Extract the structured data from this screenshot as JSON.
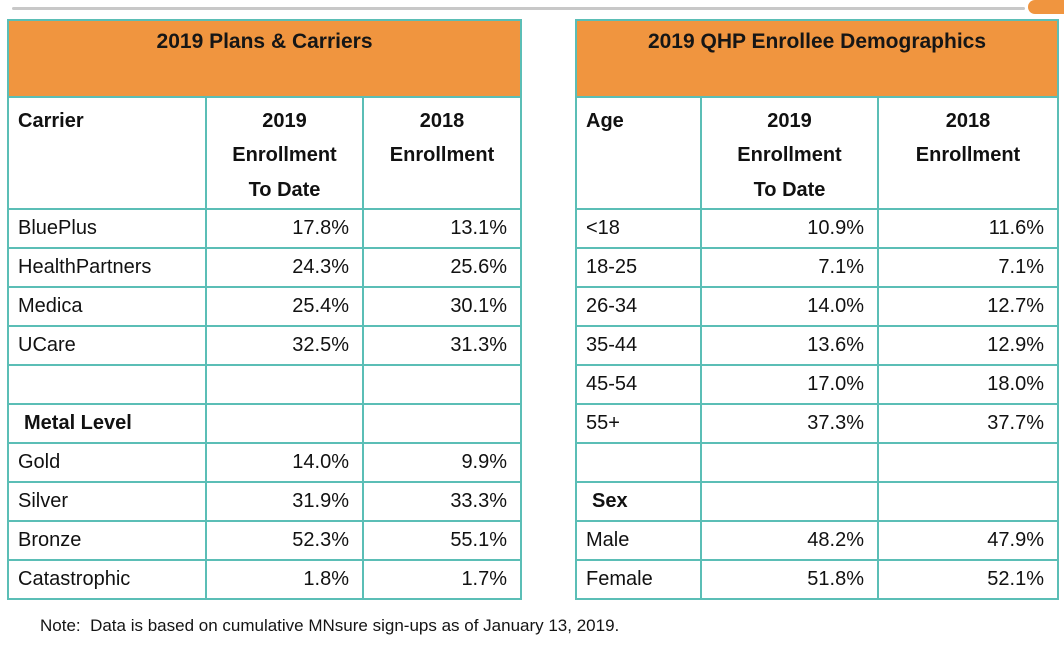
{
  "colors": {
    "header_bg": "#F0953F",
    "table_border": "#5BBEB6",
    "text": "#111111",
    "divider_line": "#C8C8C8",
    "corner_tab": "#F0953F"
  },
  "note": {
    "text": "Note:  Data is based on cumulative MNsure sign-ups as of January 13, 2019."
  },
  "chart_data": [
    {
      "type": "table",
      "title": "2019 Plans & Carriers",
      "columns": [
        "Carrier",
        "2019\nEnrollment\nTo Date",
        "2018\nEnrollment"
      ],
      "legend_position": "none",
      "grid": true,
      "rows": [
        {
          "label": "BluePlus",
          "enrollment_2019": "17.8%",
          "enrollment_2018": "13.1%"
        },
        {
          "label": "HealthPartners",
          "enrollment_2019": "24.3%",
          "enrollment_2018": "25.6%"
        },
        {
          "label": "Medica",
          "enrollment_2019": "25.4%",
          "enrollment_2018": "30.1%"
        },
        {
          "label": "UCare",
          "enrollment_2019": "32.5%",
          "enrollment_2018": "31.3%"
        },
        {
          "label": "",
          "enrollment_2019": "",
          "enrollment_2018": "",
          "empty": true
        },
        {
          "label": "Metal Level",
          "enrollment_2019": "",
          "enrollment_2018": "",
          "section": true
        },
        {
          "label": "Gold",
          "enrollment_2019": "14.0%",
          "enrollment_2018": "9.9%"
        },
        {
          "label": "Silver",
          "enrollment_2019": "31.9%",
          "enrollment_2018": "33.3%"
        },
        {
          "label": "Bronze",
          "enrollment_2019": "52.3%",
          "enrollment_2018": "55.1%"
        },
        {
          "label": "Catastrophic",
          "enrollment_2019": "1.8%",
          "enrollment_2018": "1.7%"
        }
      ]
    },
    {
      "type": "table",
      "title": "2019 QHP Enrollee Demographics",
      "columns": [
        "Age",
        "2019\nEnrollment\nTo Date",
        "2018\nEnrollment"
      ],
      "legend_position": "none",
      "grid": true,
      "rows": [
        {
          "label": "<18",
          "enrollment_2019": "10.9%",
          "enrollment_2018": "11.6%"
        },
        {
          "label": "18-25",
          "enrollment_2019": "7.1%",
          "enrollment_2018": "7.1%"
        },
        {
          "label": "26-34",
          "enrollment_2019": "14.0%",
          "enrollment_2018": "12.7%"
        },
        {
          "label": "35-44",
          "enrollment_2019": "13.6%",
          "enrollment_2018": "12.9%"
        },
        {
          "label": "45-54",
          "enrollment_2019": "17.0%",
          "enrollment_2018": "18.0%"
        },
        {
          "label": "55+",
          "enrollment_2019": "37.3%",
          "enrollment_2018": "37.7%"
        },
        {
          "label": "",
          "enrollment_2019": "",
          "enrollment_2018": "",
          "empty": true
        },
        {
          "label": "Sex",
          "enrollment_2019": "",
          "enrollment_2018": "",
          "section": true
        },
        {
          "label": "Male",
          "enrollment_2019": "48.2%",
          "enrollment_2018": "47.9%"
        },
        {
          "label": "Female",
          "enrollment_2019": "51.8%",
          "enrollment_2018": "52.1%"
        }
      ]
    }
  ]
}
